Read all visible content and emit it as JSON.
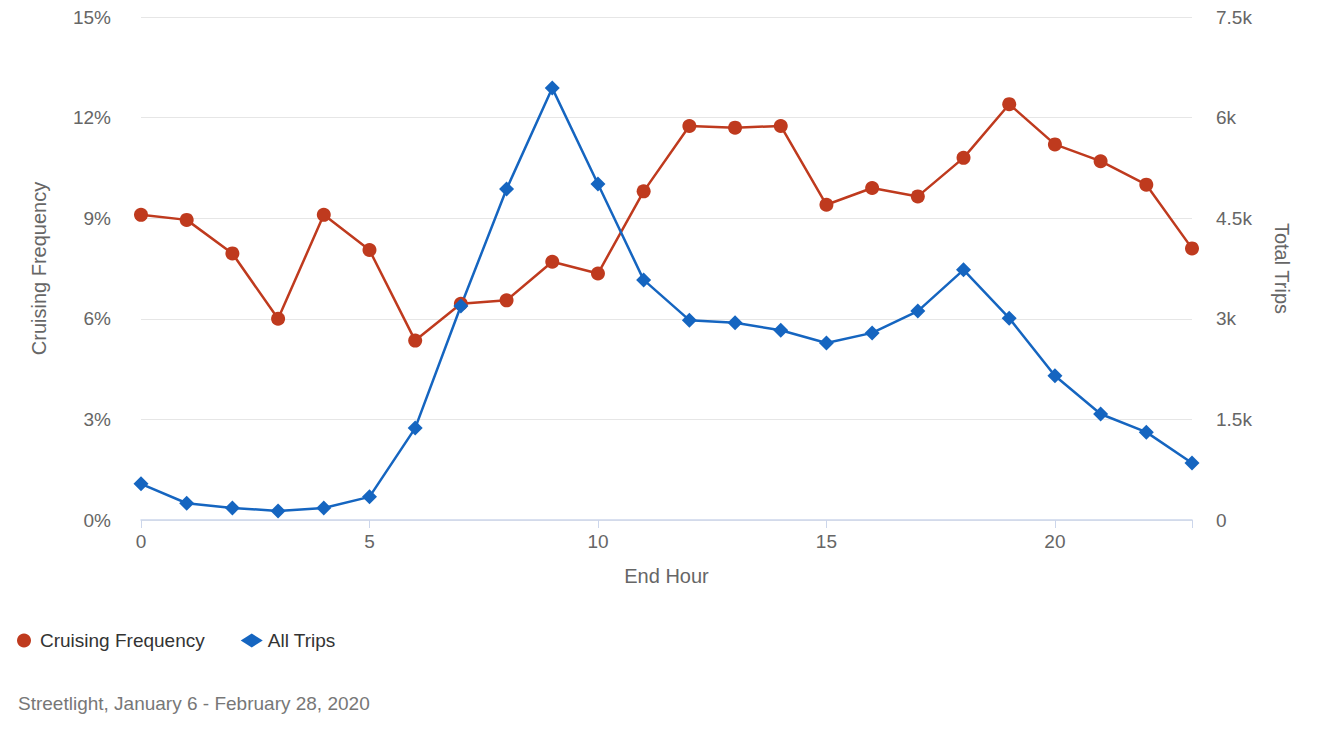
{
  "chart_data": {
    "type": "line",
    "x_label": "End Hour",
    "y_label": "Cruising Frequency",
    "y2_label": "Total Trips",
    "caption": "Streetlight, January 6 - February 28, 2020",
    "x": [
      0,
      1,
      2,
      3,
      4,
      5,
      6,
      7,
      8,
      9,
      10,
      11,
      12,
      13,
      14,
      15,
      16,
      17,
      18,
      19,
      20,
      21,
      22,
      23
    ],
    "xlim": [
      0,
      23
    ],
    "xticks": [
      0,
      5,
      10,
      15,
      20
    ],
    "ylim": [
      0,
      15
    ],
    "yticks": [
      {
        "value": 0,
        "label": "0%"
      },
      {
        "value": 3,
        "label": "3%"
      },
      {
        "value": 6,
        "label": "6%"
      },
      {
        "value": 9,
        "label": "9%"
      },
      {
        "value": 12,
        "label": "12%"
      },
      {
        "value": 15,
        "label": "15%"
      }
    ],
    "y2lim": [
      0,
      7500
    ],
    "y2ticks": [
      0,
      {
        "value": 1500,
        "label": "1.5k"
      },
      {
        "value": 3000,
        "label": "3k"
      },
      {
        "value": 4500,
        "label": "4.5k"
      },
      {
        "value": 6000,
        "label": "6k"
      },
      {
        "value": 7500,
        "label": "7.5k"
      }
    ],
    "grid": true,
    "legend": "bottom-left",
    "series": [
      {
        "name": "Cruising Frequency",
        "color": "#bf3a1e",
        "marker": "circle",
        "values": [
          9.1,
          8.95,
          7.95,
          6.0,
          9.1,
          8.05,
          5.35,
          6.45,
          6.55,
          7.7,
          7.35,
          9.8,
          11.75,
          11.7,
          11.75,
          9.4,
          9.9,
          9.65,
          10.8,
          12.4,
          11.2,
          10.7,
          10.0,
          8.1
        ]
      },
      {
        "name": "All Trips",
        "color": "#1565c0",
        "marker": "diamond",
        "axis": "y2",
        "values": [
          540,
          250,
          180,
          135,
          180,
          345,
          1370,
          3190,
          4935,
          6440,
          5010,
          3580,
          2980,
          2940,
          2830,
          2640,
          2790,
          3115,
          3730,
          3010,
          2150,
          1580,
          1310,
          850
        ]
      }
    ]
  }
}
